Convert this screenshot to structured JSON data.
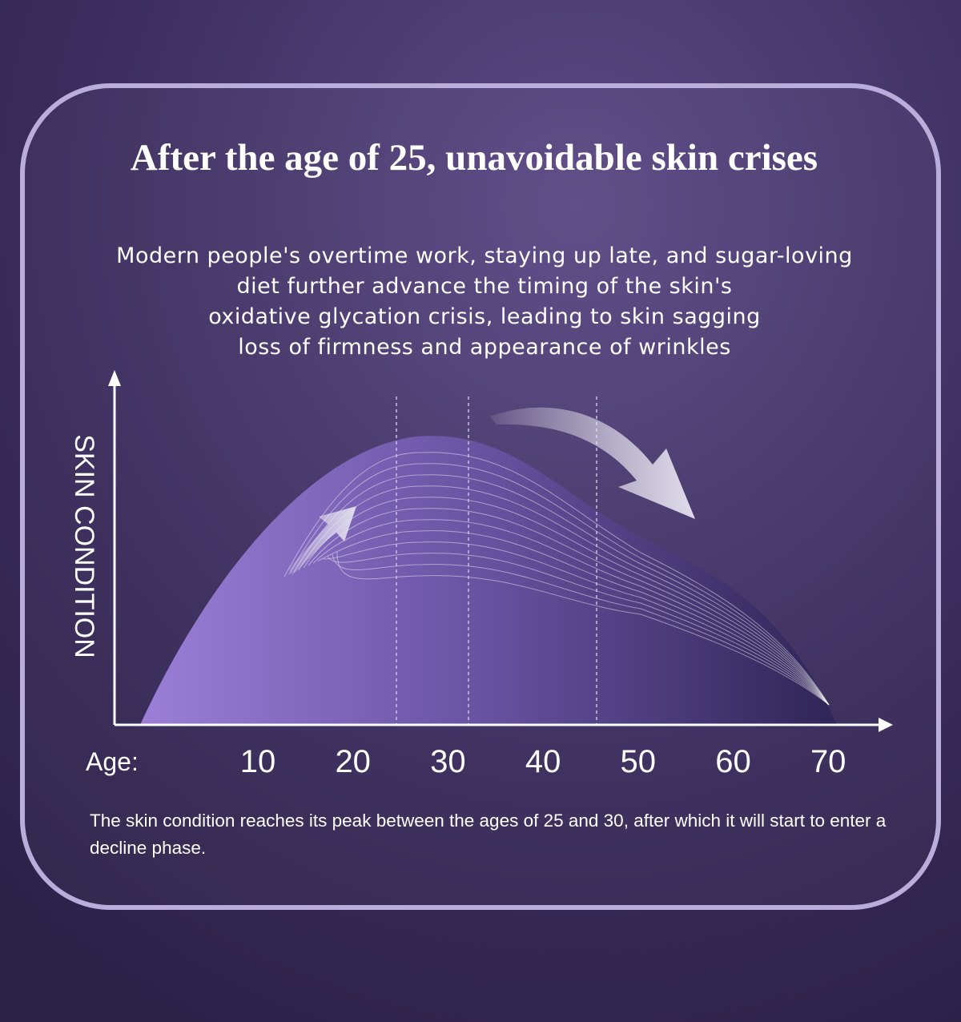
{
  "header": {
    "title": "After the age of 25, unavoidable skin crises"
  },
  "description": [
    "Modern people's overtime work, staying up late, and sugar-loving",
    "diet further advance the timing of the skin's",
    "oxidative glycation crisis, leading to skin sagging",
    "loss of firmness and appearance of wrinkles"
  ],
  "chart": {
    "y_label": "SKIN CONDITION",
    "x_label": "Age:",
    "x_ticks": [
      10,
      20,
      30,
      40,
      50,
      60,
      70
    ]
  },
  "note": "The skin condition reaches its peak between the ages of 25 and 30, after which it will start to enter a decline phase."
}
